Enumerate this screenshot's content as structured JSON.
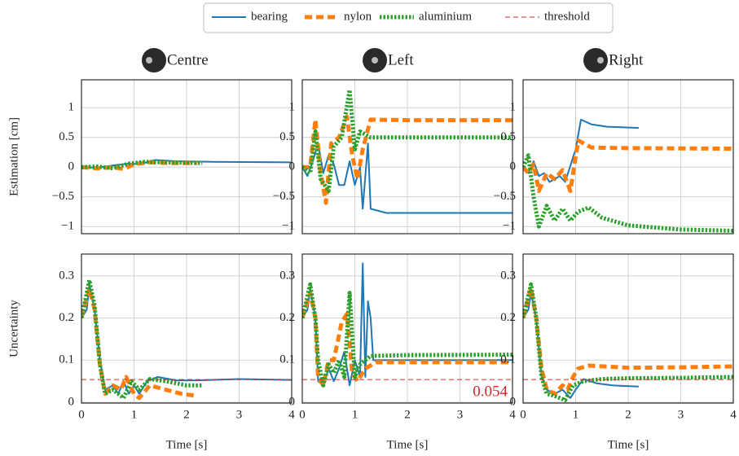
{
  "chart_data": [
    {
      "type": "line",
      "title": "Centre",
      "ylabel": "Estimation [cm]",
      "xlim": [
        0,
        4
      ],
      "xticks": [
        0,
        1,
        2,
        3,
        4
      ],
      "ylim": [
        -1.12,
        1.47
      ],
      "yticks": [
        {
          "value": -1,
          "label": "−1"
        },
        {
          "value": -0.5,
          "label": "−0.5"
        },
        0,
        0.5,
        1
      ],
      "grid": true,
      "series": [
        {
          "name": "bearing",
          "color": "#1f77b4",
          "linestyle": "solid",
          "x": [
            0,
            0.3,
            0.6,
            0.9,
            1.1,
            1.4,
            1.8,
            2.5,
            4
          ],
          "values": [
            0,
            -0.01,
            0.03,
            0.06,
            0.05,
            0.12,
            0.1,
            0.09,
            0.08
          ]
        },
        {
          "name": "nylon",
          "color": "#ff7f0e",
          "linestyle": "dashed",
          "x": [
            0,
            0.3,
            0.6,
            0.8,
            1.0,
            1.3,
            1.7,
            2.2
          ],
          "values": [
            0,
            -0.02,
            0,
            -0.03,
            0.05,
            0.08,
            0.07,
            0.07
          ]
        },
        {
          "name": "aluminium",
          "color": "#2ca02c",
          "linestyle": "dotted",
          "x": [
            0,
            0.3,
            0.6,
            0.9,
            1.2,
            1.6,
            2.3
          ],
          "values": [
            0,
            0.01,
            -0.02,
            0.06,
            0.09,
            0.08,
            0.07
          ]
        }
      ]
    },
    {
      "type": "line",
      "title": "Left",
      "xlim": [
        0,
        4
      ],
      "xticks": [
        0,
        1,
        2,
        3,
        4
      ],
      "ylim": [
        -1.12,
        1.47
      ],
      "yticks": [
        {
          "value": -1,
          "label": "−1"
        },
        {
          "value": -0.5,
          "label": "−0.5"
        },
        0,
        0.5,
        1
      ],
      "grid": true,
      "series": [
        {
          "name": "bearing",
          "color": "#1f77b4",
          "linestyle": "solid",
          "x": [
            0,
            0.1,
            0.2,
            0.3,
            0.4,
            0.5,
            0.6,
            0.7,
            0.8,
            0.9,
            1.0,
            1.1,
            1.15,
            1.25,
            1.3,
            1.6,
            2,
            4
          ],
          "values": [
            0,
            -0.15,
            0.1,
            0.4,
            -0.1,
            0.2,
            0.05,
            -0.3,
            -0.3,
            0.1,
            -0.3,
            0,
            -0.7,
            0.4,
            -0.7,
            -0.77,
            -0.77,
            -0.77
          ]
        },
        {
          "name": "nylon",
          "color": "#ff7f0e",
          "linestyle": "dashed",
          "x": [
            0,
            0.15,
            0.25,
            0.35,
            0.45,
            0.55,
            0.7,
            0.85,
            0.95,
            1.05,
            1.15,
            1.3,
            2,
            4
          ],
          "values": [
            0,
            0,
            0.8,
            -0.1,
            -0.6,
            0.4,
            0.5,
            0.85,
            0.2,
            -0.2,
            0.3,
            0.8,
            0.79,
            0.79
          ]
        },
        {
          "name": "aluminium",
          "color": "#2ca02c",
          "linestyle": "dotted",
          "x": [
            0,
            0.15,
            0.25,
            0.35,
            0.5,
            0.6,
            0.75,
            0.9,
            1.0,
            1.1,
            1.3,
            2,
            4
          ],
          "values": [
            0,
            -0.1,
            0.6,
            -0.2,
            -0.4,
            0.35,
            0.5,
            1.3,
            0.3,
            0.6,
            0.5,
            0.5,
            0.5
          ]
        }
      ]
    },
    {
      "type": "line",
      "title": "Right",
      "xlim": [
        0,
        4
      ],
      "xticks": [
        0,
        1,
        2,
        3,
        4
      ],
      "ylim": [
        -1.12,
        1.47
      ],
      "yticks": [
        {
          "value": -1,
          "label": "−1"
        },
        {
          "value": -0.5,
          "label": "−0.5"
        },
        0,
        0.5,
        1
      ],
      "grid": true,
      "series": [
        {
          "name": "bearing",
          "color": "#1f77b4",
          "linestyle": "solid",
          "x": [
            0,
            0.1,
            0.2,
            0.3,
            0.4,
            0.5,
            0.6,
            0.7,
            0.8,
            1.0,
            1.1,
            1.3,
            1.6,
            2.2
          ],
          "values": [
            0,
            -0.1,
            0.1,
            -0.15,
            -0.1,
            -0.25,
            -0.2,
            -0.15,
            -0.25,
            0.3,
            0.8,
            0.72,
            0.68,
            0.66
          ]
        },
        {
          "name": "nylon",
          "color": "#ff7f0e",
          "linestyle": "dashed",
          "x": [
            0,
            0.1,
            0.2,
            0.3,
            0.45,
            0.6,
            0.75,
            0.9,
            1.05,
            1.3,
            2,
            4
          ],
          "values": [
            0,
            -0.1,
            0.05,
            -0.4,
            -0.1,
            -0.2,
            -0.05,
            -0.4,
            0.45,
            0.33,
            0.32,
            0.31
          ]
        },
        {
          "name": "aluminium",
          "color": "#2ca02c",
          "linestyle": "dotted",
          "x": [
            0,
            0.1,
            0.2,
            0.3,
            0.45,
            0.6,
            0.75,
            0.9,
            1.05,
            1.25,
            1.5,
            2,
            3,
            4
          ],
          "values": [
            0,
            0.2,
            -0.5,
            -1.0,
            -0.65,
            -0.9,
            -0.7,
            -0.9,
            -0.75,
            -0.68,
            -0.85,
            -0.98,
            -1.05,
            -1.07
          ]
        }
      ]
    },
    {
      "type": "line",
      "ylabel": "Uncertainty",
      "xlabel": "Time [s]",
      "xlim": [
        0,
        4
      ],
      "xticks": [
        0,
        1,
        2,
        3,
        4
      ],
      "ylim": [
        -0.002,
        0.352
      ],
      "yticks": [
        0,
        0.1,
        0.2,
        0.3
      ],
      "grid": true,
      "series": [
        {
          "name": "bearing",
          "color": "#1f77b4",
          "linestyle": "solid",
          "x": [
            0,
            0.1,
            0.15,
            0.25,
            0.35,
            0.45,
            0.6,
            0.7,
            0.8,
            0.9,
            1.0,
            1.1,
            1.25,
            1.45,
            1.8,
            2.2,
            3,
            4
          ],
          "values": [
            0.2,
            0.22,
            0.28,
            0.22,
            0.1,
            0.03,
            0.04,
            0.02,
            0.05,
            0.02,
            0.04,
            0.02,
            0.05,
            0.06,
            0.052,
            0.052,
            0.055,
            0.053
          ]
        },
        {
          "name": "nylon",
          "color": "#ff7f0e",
          "linestyle": "dashed",
          "x": [
            0,
            0.15,
            0.25,
            0.35,
            0.45,
            0.6,
            0.75,
            0.85,
            1.0,
            1.1,
            1.3,
            1.6,
            1.9,
            2.2
          ],
          "values": [
            0.2,
            0.27,
            0.22,
            0.09,
            0.02,
            0.04,
            0.03,
            0.06,
            0.02,
            0.01,
            0.04,
            0.03,
            0.02,
            0.015
          ]
        },
        {
          "name": "aluminium",
          "color": "#2ca02c",
          "linestyle": "dotted",
          "x": [
            0,
            0.15,
            0.25,
            0.35,
            0.45,
            0.6,
            0.8,
            0.95,
            1.1,
            1.3,
            1.6,
            2.0,
            2.3
          ],
          "values": [
            0.2,
            0.29,
            0.23,
            0.09,
            0.02,
            0.03,
            0.01,
            0.05,
            0.03,
            0.055,
            0.05,
            0.04,
            0.04
          ]
        },
        {
          "name": "threshold",
          "color": "#d62728",
          "linestyle": "threshold",
          "x": [
            0,
            4
          ],
          "values": [
            0.054,
            0.054
          ]
        }
      ]
    },
    {
      "type": "line",
      "xlabel": "Time [s]",
      "annotation": "0.054",
      "xlim": [
        0,
        4
      ],
      "xticks": [
        0,
        1,
        2,
        3,
        4
      ],
      "ylim": [
        -0.002,
        0.352
      ],
      "yticks": [
        0,
        0.1,
        0.2,
        0.3
      ],
      "grid": true,
      "series": [
        {
          "name": "bearing",
          "color": "#1f77b4",
          "linestyle": "solid",
          "x": [
            0,
            0.1,
            0.15,
            0.25,
            0.3,
            0.4,
            0.5,
            0.6,
            0.7,
            0.8,
            0.9,
            1.0,
            1.1,
            1.15,
            1.2,
            1.25,
            1.3,
            1.35,
            1.5,
            4
          ],
          "values": [
            0.2,
            0.22,
            0.27,
            0.2,
            0.05,
            0.04,
            0.08,
            0.05,
            0.08,
            0.12,
            0.04,
            0.1,
            0.06,
            0.33,
            0.06,
            0.24,
            0.2,
            0.1,
            0.1,
            0.1
          ]
        },
        {
          "name": "nylon",
          "color": "#ff7f0e",
          "linestyle": "dashed",
          "x": [
            0,
            0.15,
            0.25,
            0.3,
            0.4,
            0.5,
            0.6,
            0.75,
            0.85,
            0.95,
            1.05,
            1.2,
            1.4,
            4
          ],
          "values": [
            0.2,
            0.26,
            0.2,
            0.06,
            0.04,
            0.1,
            0.1,
            0.19,
            0.21,
            0.07,
            0.05,
            0.08,
            0.095,
            0.095
          ]
        },
        {
          "name": "aluminium",
          "color": "#2ca02c",
          "linestyle": "dotted",
          "x": [
            0,
            0.15,
            0.25,
            0.3,
            0.4,
            0.5,
            0.6,
            0.7,
            0.8,
            0.9,
            1.0,
            1.1,
            1.3,
            2,
            4
          ],
          "values": [
            0.2,
            0.28,
            0.2,
            0.1,
            0.04,
            0.09,
            0.07,
            0.1,
            0.06,
            0.26,
            0.06,
            0.09,
            0.11,
            0.112,
            0.113
          ]
        },
        {
          "name": "threshold",
          "color": "#d62728",
          "linestyle": "threshold",
          "x": [
            0,
            4
          ],
          "values": [
            0.054,
            0.054
          ]
        }
      ]
    },
    {
      "type": "line",
      "xlabel": "Time [s]",
      "xlim": [
        0,
        4
      ],
      "xticks": [
        0,
        1,
        2,
        3,
        4
      ],
      "ylim": [
        -0.002,
        0.352
      ],
      "yticks": [
        0,
        0.1,
        0.2,
        0.3
      ],
      "grid": true,
      "series": [
        {
          "name": "bearing",
          "color": "#1f77b4",
          "linestyle": "solid",
          "x": [
            0,
            0.1,
            0.15,
            0.25,
            0.35,
            0.45,
            0.6,
            0.75,
            0.9,
            1.0,
            1.15,
            1.4,
            1.7,
            2.2
          ],
          "values": [
            0.2,
            0.22,
            0.26,
            0.2,
            0.06,
            0.03,
            0.02,
            0.03,
            0.01,
            0.03,
            0.055,
            0.045,
            0.04,
            0.037
          ]
        },
        {
          "name": "nylon",
          "color": "#ff7f0e",
          "linestyle": "dashed",
          "x": [
            0,
            0.15,
            0.25,
            0.35,
            0.45,
            0.6,
            0.75,
            0.85,
            0.95,
            1.05,
            1.25,
            2,
            3,
            4
          ],
          "values": [
            0.2,
            0.27,
            0.2,
            0.08,
            0.03,
            0.02,
            0.04,
            0.03,
            0.06,
            0.08,
            0.087,
            0.082,
            0.083,
            0.085
          ]
        },
        {
          "name": "aluminium",
          "color": "#2ca02c",
          "linestyle": "dotted",
          "x": [
            0,
            0.15,
            0.25,
            0.35,
            0.45,
            0.6,
            0.8,
            0.95,
            1.15,
            1.5,
            2,
            3,
            4
          ],
          "values": [
            0.2,
            0.28,
            0.2,
            0.06,
            0.02,
            0.015,
            0.005,
            0.04,
            0.05,
            0.055,
            0.057,
            0.058,
            0.06
          ]
        },
        {
          "name": "threshold",
          "color": "#d62728",
          "linestyle": "threshold",
          "x": [
            0,
            4
          ],
          "values": [
            0.054,
            0.054
          ]
        }
      ]
    }
  ]
}
